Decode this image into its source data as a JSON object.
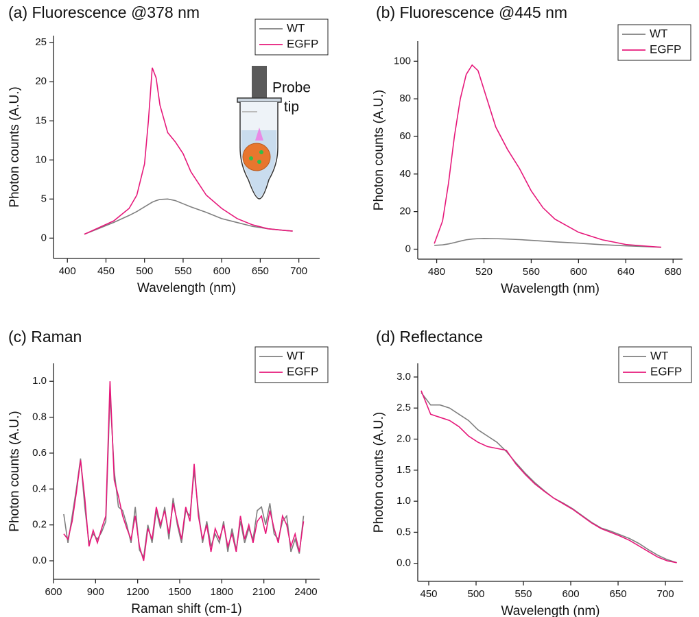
{
  "chart_data": [
    {
      "type": "line",
      "title": "(a) Fluorescence @378 nm",
      "x_label": "Wavelength (nm)",
      "y_label": "Photon counts (A.U.)",
      "annotation": [
        "Probe",
        "tip"
      ],
      "legend": "upper right",
      "x": [
        422,
        440,
        460,
        480,
        490,
        500,
        505,
        510,
        515,
        520,
        530,
        540,
        550,
        560,
        580,
        600,
        620,
        640,
        660,
        680,
        692
      ],
      "series": [
        {
          "name": "WT",
          "color": "#7f7f7f",
          "values": [
            0.5,
            1.2,
            2.0,
            2.9,
            3.4,
            4.0,
            4.3,
            4.6,
            4.8,
            4.95,
            5.0,
            4.8,
            4.4,
            4.0,
            3.3,
            2.5,
            2.0,
            1.5,
            1.2,
            1.0,
            0.9
          ]
        },
        {
          "name": "EGFP",
          "color": "#e6187a",
          "values": [
            0.5,
            1.3,
            2.2,
            3.8,
            5.5,
            9.5,
            15,
            21.8,
            20.5,
            17,
            13.5,
            12.3,
            10.8,
            8.5,
            5.5,
            3.8,
            2.5,
            1.7,
            1.2,
            1.0,
            0.9
          ]
        }
      ],
      "xlim": [
        382,
        727
      ],
      "xticks": [
        400,
        450,
        500,
        550,
        600,
        650,
        700
      ],
      "ylim": [
        -2.6,
        25.9
      ],
      "yticks": [
        0,
        5,
        10,
        15,
        20,
        25
      ]
    },
    {
      "type": "line",
      "title": "(b) Fluorescence @445 nm",
      "x_label": "Wavelength (nm)",
      "y_label": "Photon counts (A.U.)",
      "legend": "upper right",
      "x": [
        478,
        485,
        490,
        495,
        500,
        505,
        510,
        515,
        520,
        530,
        540,
        550,
        560,
        570,
        580,
        600,
        620,
        640,
        660,
        670
      ],
      "series": [
        {
          "name": "WT",
          "color": "#7f7f7f",
          "values": [
            2,
            2.3,
            2.8,
            3.5,
            4.3,
            5,
            5.4,
            5.6,
            5.7,
            5.6,
            5.4,
            5.1,
            4.7,
            4.3,
            3.9,
            3.2,
            2.4,
            1.8,
            1.3,
            1.0
          ]
        },
        {
          "name": "EGFP",
          "color": "#e6187a",
          "values": [
            3,
            15,
            35,
            60,
            80,
            93,
            98,
            95,
            85,
            65,
            53,
            43,
            31,
            22,
            16,
            9,
            5,
            2.5,
            1.5,
            1.0
          ]
        }
      ],
      "xlim": [
        464,
        688
      ],
      "xticks": [
        480,
        520,
        560,
        600,
        640,
        680
      ],
      "ylim": [
        -5.3,
        110.7
      ],
      "yticks": [
        0,
        20,
        40,
        60,
        80,
        100
      ]
    },
    {
      "type": "line",
      "title": "(c) Raman",
      "x_label": "Raman shift (cm-1)",
      "y_label": "Photon counts (A.U.)",
      "legend": "upper right",
      "x": [
        673,
        703,
        733,
        763,
        793,
        823,
        853,
        883,
        913,
        943,
        973,
        1003,
        1033,
        1063,
        1093,
        1123,
        1153,
        1183,
        1213,
        1243,
        1273,
        1303,
        1333,
        1363,
        1393,
        1423,
        1453,
        1483,
        1513,
        1543,
        1573,
        1603,
        1633,
        1663,
        1693,
        1723,
        1753,
        1783,
        1813,
        1843,
        1873,
        1903,
        1933,
        1963,
        1993,
        2023,
        2053,
        2083,
        2113,
        2143,
        2173,
        2203,
        2233,
        2263,
        2293,
        2323,
        2353,
        2383
      ],
      "series": [
        {
          "name": "WT",
          "color": "#7f7f7f",
          "values": [
            0.26,
            0.1,
            0.25,
            0.4,
            0.57,
            0.3,
            0.1,
            0.15,
            0.12,
            0.16,
            0.22,
            0.93,
            0.5,
            0.3,
            0.28,
            0.2,
            0.1,
            0.3,
            0.06,
            0.02,
            0.2,
            0.1,
            0.28,
            0.18,
            0.3,
            0.12,
            0.35,
            0.2,
            0.1,
            0.28,
            0.25,
            0.5,
            0.28,
            0.1,
            0.22,
            0.08,
            0.15,
            0.1,
            0.22,
            0.05,
            0.18,
            0.06,
            0.22,
            0.1,
            0.18,
            0.12,
            0.28,
            0.3,
            0.2,
            0.32,
            0.15,
            0.12,
            0.22,
            0.25,
            0.05,
            0.12,
            0.04,
            0.25
          ]
        },
        {
          "name": "EGFP",
          "color": "#e6187a",
          "values": [
            0.15,
            0.12,
            0.22,
            0.38,
            0.56,
            0.35,
            0.08,
            0.17,
            0.1,
            0.18,
            0.25,
            1.0,
            0.45,
            0.36,
            0.25,
            0.18,
            0.12,
            0.25,
            0.08,
            0.0,
            0.18,
            0.12,
            0.3,
            0.2,
            0.28,
            0.15,
            0.32,
            0.22,
            0.12,
            0.3,
            0.22,
            0.54,
            0.25,
            0.12,
            0.2,
            0.05,
            0.18,
            0.12,
            0.2,
            0.08,
            0.15,
            0.05,
            0.25,
            0.12,
            0.2,
            0.1,
            0.22,
            0.25,
            0.15,
            0.28,
            0.18,
            0.1,
            0.25,
            0.2,
            0.08,
            0.15,
            0.05,
            0.22
          ]
        }
      ],
      "xlim": [
        600,
        2498
      ],
      "xticks": [
        600,
        900,
        1200,
        1500,
        1800,
        2100,
        2400
      ],
      "ylim": [
        -0.103,
        1.1
      ],
      "yticks": [
        {
          "value": 0,
          "label": "0.0"
        },
        0.2,
        0.4,
        0.6,
        0.8,
        {
          "value": 1,
          "label": "1.0"
        }
      ]
    },
    {
      "type": "line",
      "title": "(d) Reflectance",
      "x_label": "Wavelength (nm)",
      "y_label": "Photon counts (A.U.)",
      "legend": "upper right",
      "x": [
        442,
        452,
        462,
        472,
        482,
        492,
        502,
        512,
        522,
        532,
        542,
        552,
        562,
        572,
        582,
        592,
        602,
        612,
        622,
        632,
        642,
        652,
        662,
        672,
        682,
        692,
        702,
        712
      ],
      "series": [
        {
          "name": "WT",
          "color": "#7f7f7f",
          "values": [
            2.75,
            2.55,
            2.55,
            2.5,
            2.4,
            2.3,
            2.15,
            2.05,
            1.95,
            1.8,
            1.62,
            1.45,
            1.3,
            1.17,
            1.05,
            0.97,
            0.88,
            0.77,
            0.66,
            0.57,
            0.52,
            0.46,
            0.4,
            0.32,
            0.22,
            0.13,
            0.06,
            0.01
          ]
        },
        {
          "name": "EGFP",
          "color": "#e6187a",
          "values": [
            2.78,
            2.4,
            2.35,
            2.3,
            2.2,
            2.05,
            1.95,
            1.88,
            1.85,
            1.82,
            1.6,
            1.43,
            1.28,
            1.16,
            1.05,
            0.96,
            0.87,
            0.76,
            0.65,
            0.56,
            0.5,
            0.44,
            0.37,
            0.28,
            0.19,
            0.1,
            0.04,
            0.01
          ]
        }
      ],
      "xlim": [
        438.4,
        718.8
      ],
      "xticks": [
        450,
        500,
        550,
        600,
        650,
        700
      ],
      "ylim": [
        -0.29,
        3.22
      ],
      "yticks": [
        {
          "value": 0,
          "label": "0.0"
        },
        0.5,
        {
          "value": 1,
          "label": "1.0"
        },
        1.5,
        {
          "value": 2,
          "label": "2.0"
        },
        2.5,
        {
          "value": 3,
          "label": "3.0"
        }
      ]
    }
  ]
}
